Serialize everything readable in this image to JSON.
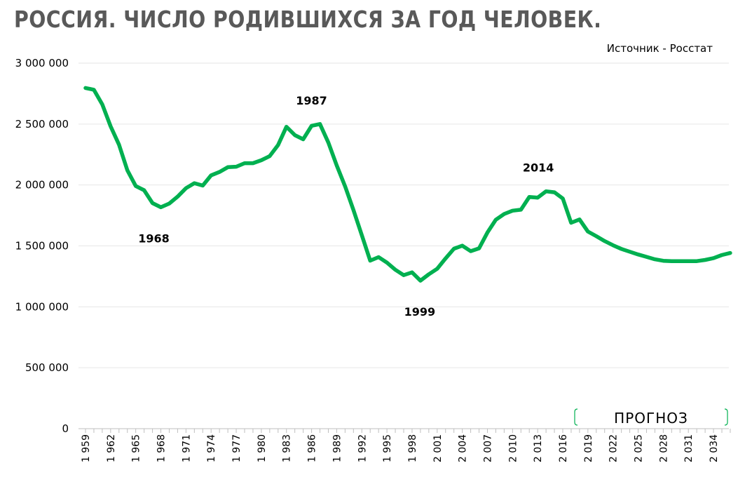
{
  "title": "РОССИЯ. ЧИСЛО РОДИВШИХСЯ ЗА ГОД ЧЕЛОВЕК.",
  "source": "Источник - Росстат",
  "chart_data": {
    "type": "line",
    "title": "РОССИЯ. ЧИСЛО РОДИВШИХСЯ ЗА ГОД ЧЕЛОВЕК.",
    "ylim": [
      0,
      3000000
    ],
    "yticks": [
      0,
      500000,
      1000000,
      1500000,
      2000000,
      2500000,
      3000000
    ],
    "ytick_labels": [
      "0",
      "500 000",
      "1 000 000",
      "1 500 000",
      "2 000 000",
      "2 500 000",
      "3 000 000"
    ],
    "xlim": [
      1959,
      2036
    ],
    "xticks": [
      1959,
      1962,
      1965,
      1968,
      1971,
      1974,
      1977,
      1980,
      1983,
      1986,
      1989,
      1992,
      1995,
      1998,
      2001,
      2004,
      2007,
      2010,
      2013,
      2016,
      2019,
      2022,
      2025,
      2028,
      2031,
      2034
    ],
    "xtick_labels": [
      "1 959",
      "1 962",
      "1 965",
      "1 968",
      "1 971",
      "1 974",
      "1 977",
      "1 980",
      "1 983",
      "1 986",
      "1 989",
      "1 992",
      "1 995",
      "1 998",
      "2 001",
      "2 004",
      "2 007",
      "2 010",
      "2 013",
      "2 016",
      "2 019",
      "2 022",
      "2 025",
      "2 028",
      "2 031",
      "2 034"
    ],
    "grid": "horizontal",
    "line_color": "#00b050",
    "x": [
      1959,
      1960,
      1961,
      1962,
      1963,
      1964,
      1965,
      1966,
      1967,
      1968,
      1969,
      1970,
      1971,
      1972,
      1973,
      1974,
      1975,
      1976,
      1977,
      1978,
      1979,
      1980,
      1981,
      1982,
      1983,
      1984,
      1985,
      1986,
      1987,
      1988,
      1989,
      1990,
      1991,
      1992,
      1993,
      1994,
      1995,
      1996,
      1997,
      1998,
      1999,
      2000,
      2001,
      2002,
      2003,
      2004,
      2005,
      2006,
      2007,
      2008,
      2009,
      2010,
      2011,
      2012,
      2013,
      2014,
      2015,
      2016,
      2017,
      2018,
      2019,
      2020,
      2021,
      2022,
      2023,
      2024,
      2025,
      2026,
      2027,
      2028,
      2029,
      2030,
      2031,
      2032,
      2033,
      2034,
      2035,
      2036
    ],
    "y": [
      2796000,
      2782000,
      2662000,
      2482000,
      2331000,
      2121000,
      1991000,
      1957000,
      1851000,
      1817000,
      1848000,
      1904000,
      1974000,
      2015000,
      1995000,
      2079000,
      2107000,
      2146000,
      2150000,
      2179000,
      2179000,
      2203000,
      2237000,
      2328000,
      2478000,
      2409000,
      2375000,
      2486000,
      2500000,
      2348000,
      2161000,
      1989000,
      1795000,
      1587000,
      1379000,
      1408000,
      1363000,
      1304000,
      1260000,
      1283000,
      1215000,
      1267000,
      1312000,
      1397000,
      1477000,
      1502000,
      1457000,
      1480000,
      1610000,
      1714000,
      1762000,
      1789000,
      1797000,
      1902000,
      1896000,
      1948000,
      1940000,
      1889000,
      1690000,
      1717000,
      1618000,
      1580000,
      1540000,
      1505000,
      1475000,
      1452000,
      1430000,
      1410000,
      1390000,
      1378000,
      1375000,
      1375000,
      1375000,
      1375000,
      1385000,
      1400000,
      1425000,
      1442000
    ],
    "annotations": [
      {
        "year": 1968,
        "label": "1968"
      },
      {
        "year": 1987,
        "label": "1987"
      },
      {
        "year": 1999,
        "label": "1999"
      },
      {
        "year": 2014,
        "label": "2014"
      }
    ],
    "forecast": {
      "label": "ПРОГНОЗ",
      "from": 2018,
      "to": 2036
    }
  }
}
